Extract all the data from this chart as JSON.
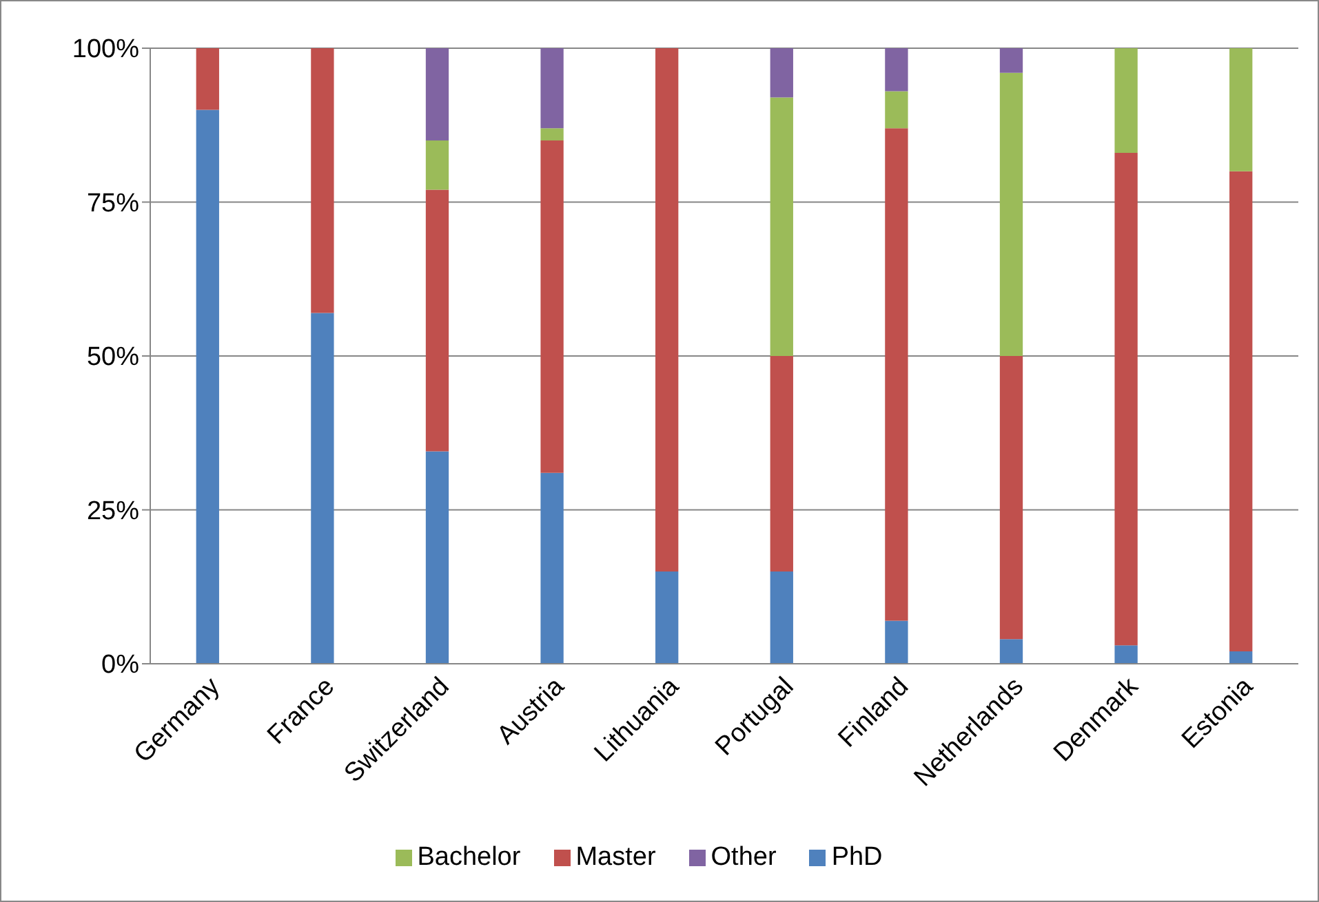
{
  "chart_data": {
    "type": "bar",
    "stacked": true,
    "categories": [
      "Germany",
      "France",
      "Switzerland",
      "Austria",
      "Lithuania",
      "Portugal",
      "Finland",
      "Netherlands",
      "Denmark",
      "Estonia"
    ],
    "series": [
      {
        "name": "PhD",
        "color": "#4f81bd",
        "values": [
          90,
          57,
          34.5,
          31,
          15,
          15,
          7,
          4,
          3,
          2
        ]
      },
      {
        "name": "Master",
        "color": "#c0504d",
        "values": [
          10,
          43,
          42.5,
          54,
          85,
          35,
          80,
          46,
          80,
          78
        ]
      },
      {
        "name": "Bachelor",
        "color": "#9bbb59",
        "values": [
          0,
          0,
          8,
          2,
          0,
          42,
          6,
          46,
          17,
          20
        ]
      },
      {
        "name": "Other",
        "color": "#8064a2",
        "values": [
          0,
          0,
          15,
          13,
          0,
          8,
          7,
          4,
          0,
          0
        ]
      }
    ],
    "ylim": [
      0,
      100
    ],
    "yticks": [
      {
        "value": 0,
        "label": "0%"
      },
      {
        "value": 25,
        "label": "25%"
      },
      {
        "value": 50,
        "label": "50%"
      },
      {
        "value": 75,
        "label": "75%"
      },
      {
        "value": 100,
        "label": "100%"
      }
    ],
    "grid": "y",
    "legend": "bottom"
  }
}
